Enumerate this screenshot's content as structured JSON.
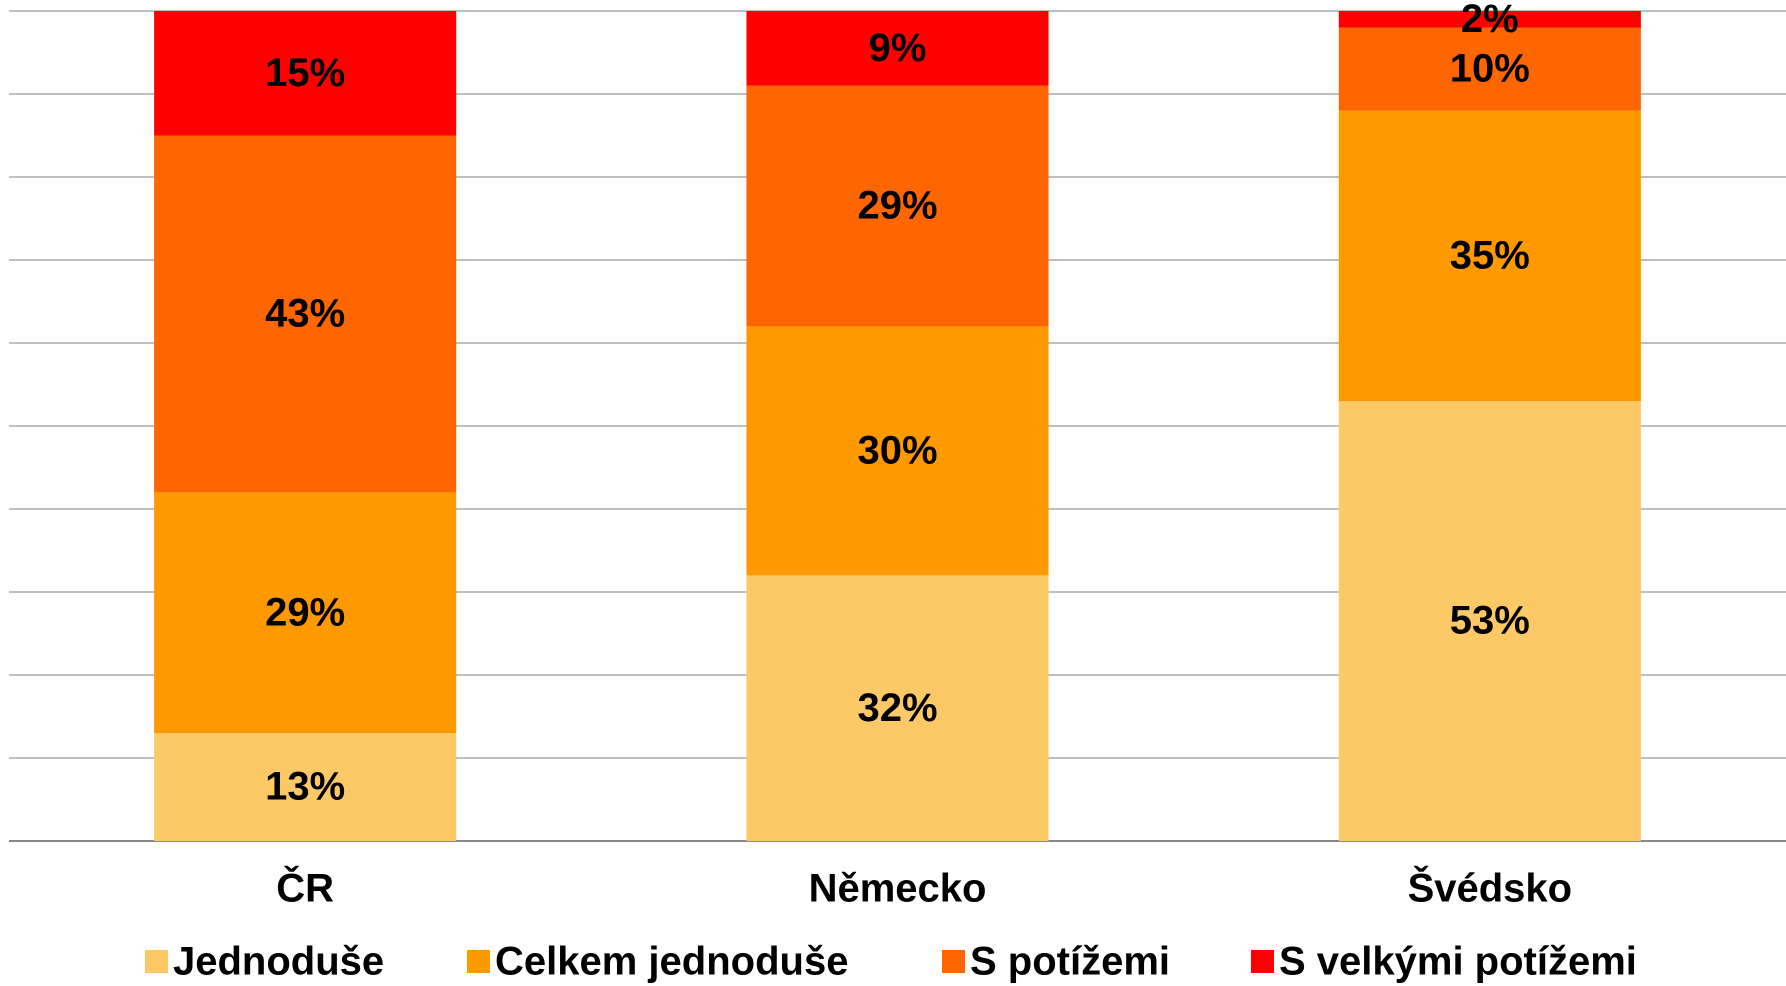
{
  "chart_data": {
    "type": "stacked_bar",
    "categories": [
      "ČR",
      "Německo",
      "Švédsko"
    ],
    "series": [
      {
        "name": "Jednoduše",
        "color": "#fdc967",
        "values": [
          13,
          32,
          53
        ],
        "value_labels": [
          "13%",
          "32%",
          "53%"
        ]
      },
      {
        "name": "Celkem jednoduše",
        "color": "#ff9900",
        "values": [
          29,
          30,
          35
        ],
        "value_labels": [
          "29%",
          "30%",
          "35%"
        ]
      },
      {
        "name": "S potížemi",
        "color": "#ff6600",
        "values": [
          43,
          29,
          10
        ],
        "value_labels": [
          "43%",
          "29%",
          "10%"
        ]
      },
      {
        "name": "S velkými potížemi",
        "color": "#ff0000",
        "values": [
          15,
          9,
          2
        ],
        "value_labels": [
          "15%",
          "9%",
          "2%"
        ]
      }
    ],
    "ylim": [
      0,
      100
    ],
    "yticks": [
      0,
      10,
      20,
      30,
      40,
      50,
      60,
      70,
      80,
      90,
      100
    ],
    "grid": true,
    "legend": "bottom"
  }
}
